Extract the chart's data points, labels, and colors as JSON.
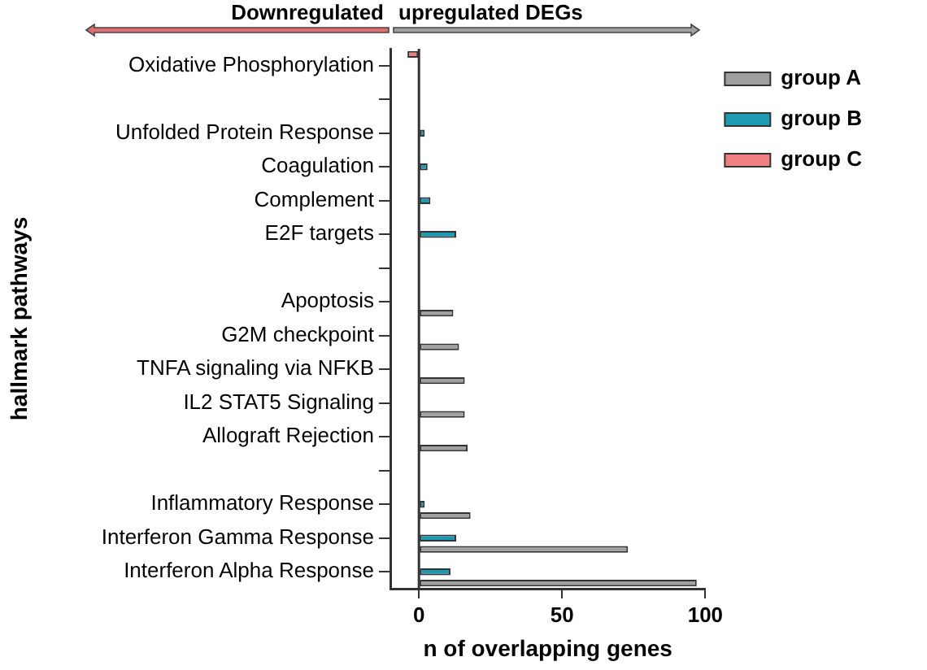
{
  "chart_data": {
    "type": "bar",
    "orientation": "horizontal",
    "xlabel": "n of overlapping genes",
    "ylabel": "hallmark pathways",
    "categories": [
      "Oxidative Phosphorylation",
      null,
      "Unfolded Protein Response",
      "Coagulation",
      "Complement",
      "E2F targets",
      null,
      "Apoptosis",
      "G2M checkpoint",
      "TNFA signaling via NFKB",
      "IL2 STAT5 Signaling",
      "Allograft Rejection",
      null,
      "Inflammatory Response",
      "Interferon Gamma Response",
      "Interferon Alpha Response"
    ],
    "series": [
      {
        "name": "group A",
        "color": "#a0a0a0",
        "values": [
          null,
          null,
          null,
          null,
          null,
          null,
          null,
          12,
          14,
          16,
          16,
          17,
          null,
          18,
          73,
          97
        ]
      },
      {
        "name": "group B",
        "color": "#1a9bb0",
        "values": [
          null,
          null,
          2,
          3,
          4,
          13,
          null,
          null,
          null,
          null,
          null,
          null,
          null,
          2,
          13,
          11
        ]
      },
      {
        "name": "group C",
        "color": "#f08080",
        "values": [
          -4,
          null,
          null,
          null,
          null,
          null,
          null,
          null,
          null,
          null,
          null,
          null,
          null,
          null,
          null,
          null
        ]
      }
    ],
    "xlim": [
      -10,
      100
    ],
    "xticks": [
      0,
      50,
      100
    ],
    "grid": false,
    "legend": "top right",
    "ref_lines": [
      {
        "axis": "x",
        "value": 0
      }
    ],
    "annotations": [
      "Downregulated",
      "upregulated DEGs"
    ]
  }
}
